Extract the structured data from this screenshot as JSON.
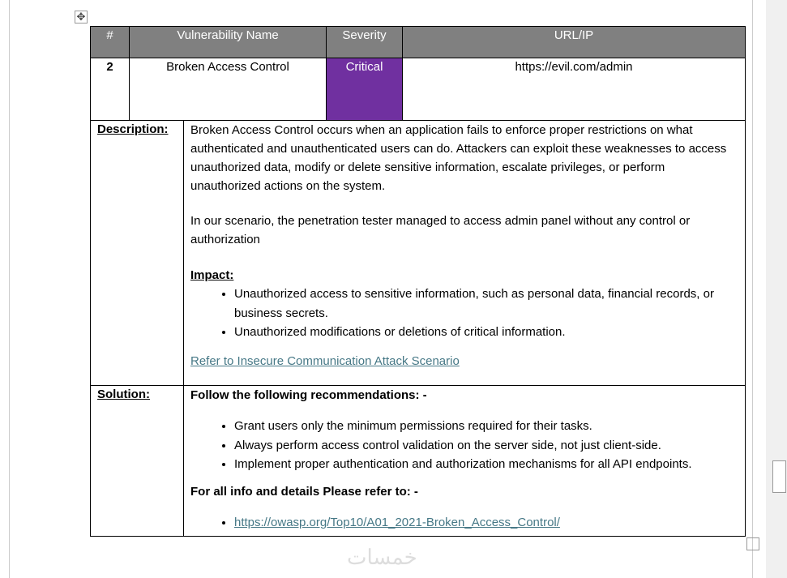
{
  "header": {
    "num": "#",
    "name": "Vulnerability Name",
    "severity": "Severity",
    "url": "URL/IP"
  },
  "row": {
    "num": "2",
    "name": "Broken Access Control",
    "severity": "Critical",
    "url": "https://evil.com/admin",
    "severity_color": "#7030a0"
  },
  "description": {
    "label": "Description:",
    "p1": "Broken Access Control occurs when an application fails to enforce proper restrictions on what authenticated and unauthenticated users can do. Attackers can exploit these weaknesses to access unauthorized data, modify or delete sensitive information, escalate privileges, or perform unauthorized actions on the system.",
    "p2": "In our scenario, the penetration tester managed to access admin panel without any control or authorization",
    "impact_label": "Impact:",
    "impacts": [
      "Unauthorized access to sensitive information, such as personal data, financial records, or business secrets.",
      "Unauthorized modifications or deletions of critical information."
    ],
    "link": "Refer to Insecure Communication Attack Scenario"
  },
  "solution": {
    "label": "Solution:",
    "intro": "Follow the following recommendations: -",
    "items": [
      "Grant users only the minimum permissions required for their tasks.",
      "Always perform access control validation on the server side, not just client-side.",
      "Implement proper authentication and authorization mechanisms for all API endpoints."
    ],
    "refer": "For all info and details Please refer to: -",
    "link": "https://owasp.org/Top10/A01_2021-Broken_Access_Control/"
  },
  "watermark": "خمسات"
}
